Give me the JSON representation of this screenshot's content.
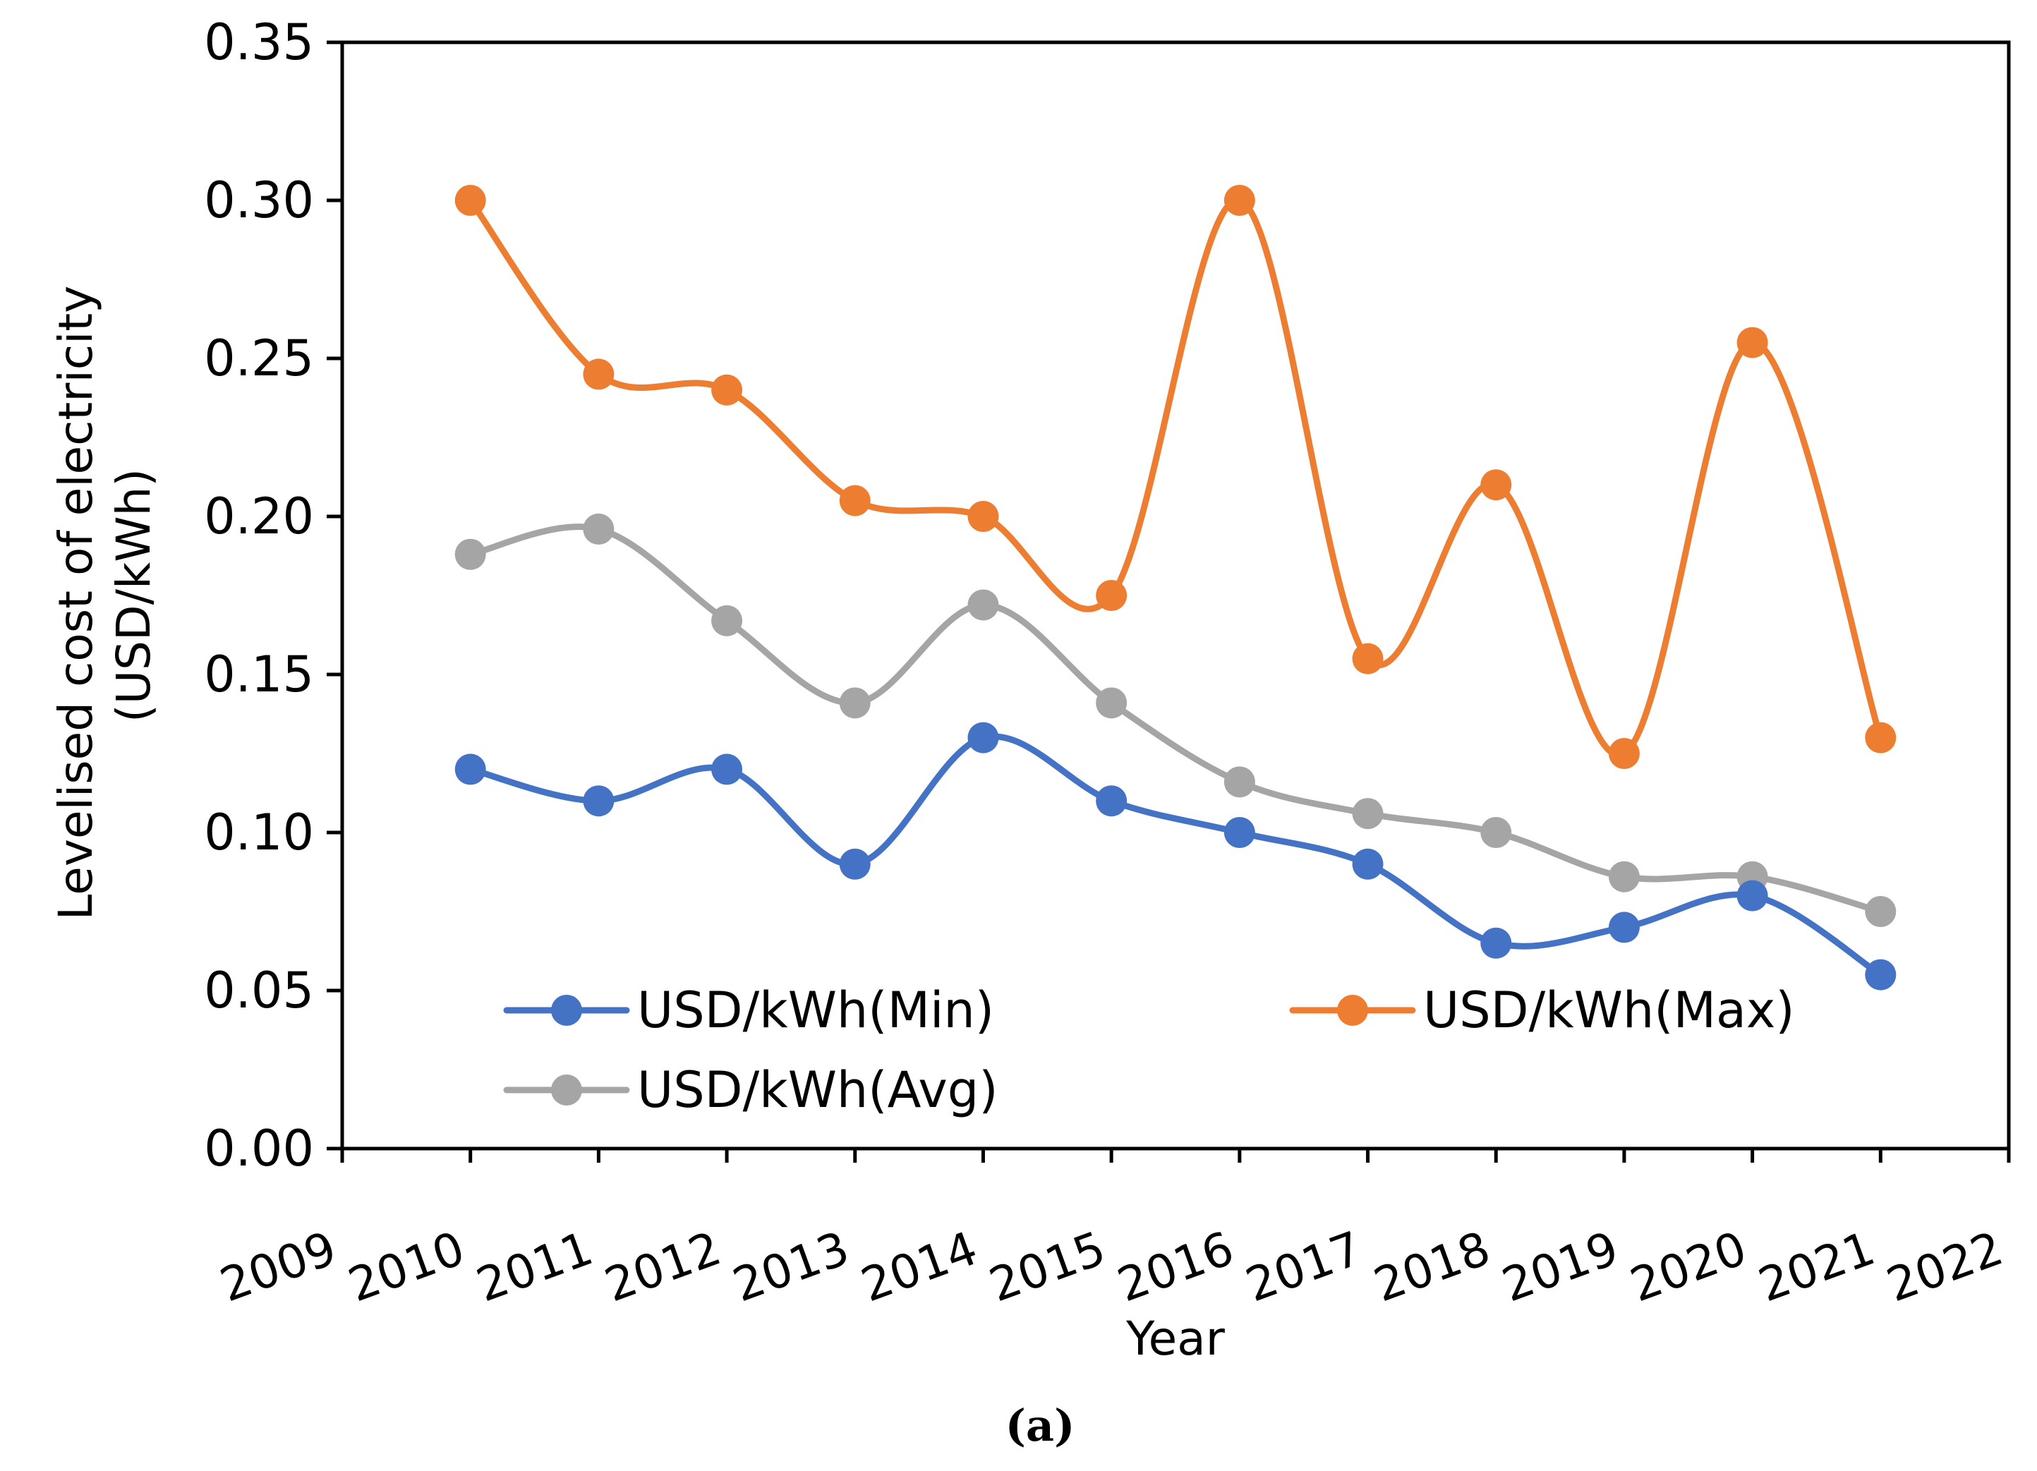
{
  "chart_data": {
    "type": "line",
    "smooth": true,
    "x": [
      2010,
      2011,
      2012,
      2013,
      2014,
      2015,
      2016,
      2017,
      2018,
      2019,
      2020,
      2021
    ],
    "series": [
      {
        "name": "USD/kWh(Min)",
        "color": "#4472C4",
        "values": [
          0.12,
          0.11,
          0.12,
          0.09,
          0.13,
          0.11,
          0.1,
          0.09,
          0.065,
          0.07,
          0.08,
          0.055
        ]
      },
      {
        "name": "USD/kWh(Max)",
        "color": "#ED7D31",
        "values": [
          0.3,
          0.245,
          0.24,
          0.205,
          0.2,
          0.175,
          0.3,
          0.155,
          0.21,
          0.125,
          0.255,
          0.13
        ]
      },
      {
        "name": "USD/kWh(Avg)",
        "color": "#A5A5A5",
        "values": [
          0.188,
          0.196,
          0.167,
          0.141,
          0.172,
          0.141,
          0.116,
          0.106,
          0.1,
          0.086,
          0.086,
          0.075
        ]
      }
    ],
    "xlabel": "Year",
    "ylabel_lines": [
      "Levelised cost of electricity",
      "(USD/kWh)"
    ],
    "xlim": [
      2009,
      2022
    ],
    "ylim": [
      0,
      0.35
    ],
    "xticks": [
      "2009",
      "2010",
      "2011",
      "2012",
      "2013",
      "2014",
      "2015",
      "2016",
      "2017",
      "2018",
      "2019",
      "2020",
      "2021",
      "2022"
    ],
    "yticks": [
      "0.00",
      "0.05",
      "0.10",
      "0.15",
      "0.20",
      "0.25",
      "0.30",
      "0.35"
    ],
    "grid": false,
    "legend_position": "bottom-inside"
  },
  "caption": "(a)"
}
